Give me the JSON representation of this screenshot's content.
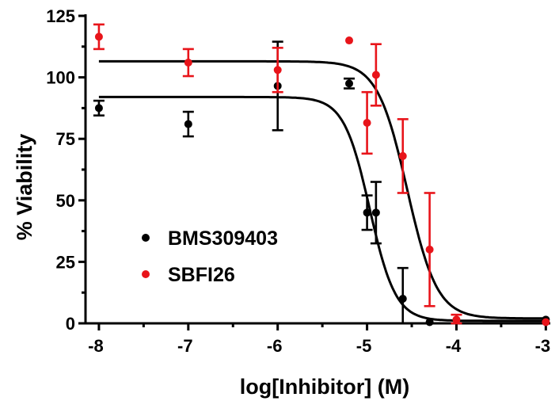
{
  "chart_data": {
    "type": "scatter",
    "title": "",
    "xlabel": "log[Inhibitor] (M)",
    "ylabel": "% Viability",
    "xlim": [
      -8.15,
      -2.95
    ],
    "ylim": [
      0,
      125
    ],
    "x_ticks": [
      -8,
      -7,
      -6,
      -5,
      -4,
      -3
    ],
    "y_ticks": [
      0,
      25,
      50,
      75,
      100,
      125
    ],
    "grid": false,
    "legend_position": "bottom-left",
    "series": [
      {
        "name": "BMS309403",
        "color": "#000000",
        "points": [
          {
            "x": -8.0,
            "y": 87.5,
            "err": 3.0
          },
          {
            "x": -7.0,
            "y": 81.0,
            "err": 5.0
          },
          {
            "x": -6.0,
            "y": 96.5,
            "err": 18.0
          },
          {
            "x": -5.2,
            "y": 97.5,
            "err": 2.0
          },
          {
            "x": -5.0,
            "y": 45.0,
            "err": 7.0
          },
          {
            "x": -4.9,
            "y": 45.0,
            "err": 12.5
          },
          {
            "x": -4.6,
            "y": 10.0,
            "err": 12.5
          },
          {
            "x": -4.3,
            "y": 0.5,
            "err": 0
          },
          {
            "x": -3.0,
            "y": 1.5,
            "err": 0
          }
        ],
        "fit": {
          "top": 92,
          "bottom": 1,
          "log_ic50": -4.97,
          "hill_slope": -3.0
        }
      },
      {
        "name": "SBFI26",
        "color": "#e8141a",
        "points": [
          {
            "x": -8.0,
            "y": 116.5,
            "err": 5.0
          },
          {
            "x": -7.0,
            "y": 106.0,
            "err": 5.5
          },
          {
            "x": -6.0,
            "y": 103.0,
            "err": 9.0
          },
          {
            "x": -5.2,
            "y": 115.0,
            "err": 0
          },
          {
            "x": -5.0,
            "y": 81.5,
            "err": 12.5
          },
          {
            "x": -4.9,
            "y": 101.0,
            "err": 12.5
          },
          {
            "x": -4.6,
            "y": 68.0,
            "err": 15.0
          },
          {
            "x": -4.3,
            "y": 30.0,
            "err": 23.0
          },
          {
            "x": -4.0,
            "y": 1.5,
            "err": 2.0
          },
          {
            "x": -3.0,
            "y": 0.5,
            "err": 0
          }
        ],
        "fit": {
          "top": 106.5,
          "bottom": 2,
          "log_ic50": -4.55,
          "hill_slope": -2.6
        }
      }
    ]
  }
}
